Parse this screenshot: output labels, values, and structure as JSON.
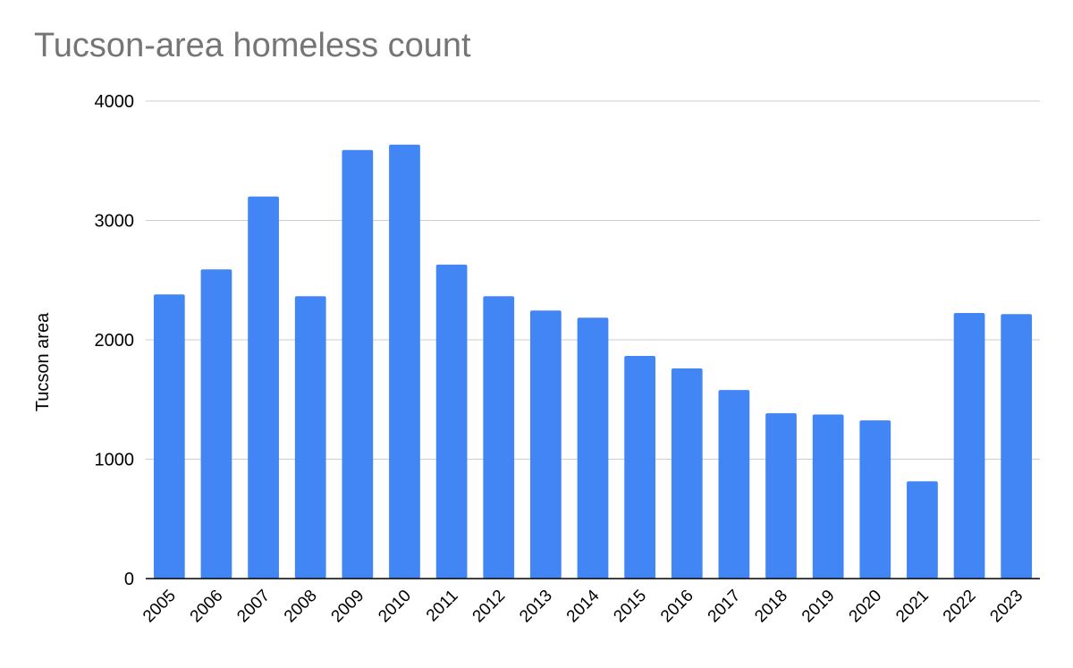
{
  "chart_data": {
    "type": "bar",
    "title": "Tucson-area homeless count",
    "xlabel": "",
    "ylabel": "Tucson area",
    "categories": [
      "2005",
      "2006",
      "2007",
      "2008",
      "2009",
      "2010",
      "2011",
      "2012",
      "2013",
      "2014",
      "2015",
      "2016",
      "2017",
      "2018",
      "2019",
      "2020",
      "2021",
      "2022",
      "2023"
    ],
    "series": [
      {
        "values": [
          2380,
          2590,
          3200,
          2365,
          3590,
          3635,
          2630,
          2365,
          2245,
          2185,
          1865,
          1760,
          1580,
          1385,
          1375,
          1325,
          815,
          2225,
          2215
        ]
      }
    ],
    "yticks": [
      "0",
      "1000",
      "2000",
      "3000",
      "4000"
    ],
    "ylim": [
      0,
      4000
    ],
    "grid": true,
    "legend": "none",
    "bar_color": "#4285F4",
    "grid_color": "#cccccc",
    "axis_color": "#000000"
  }
}
